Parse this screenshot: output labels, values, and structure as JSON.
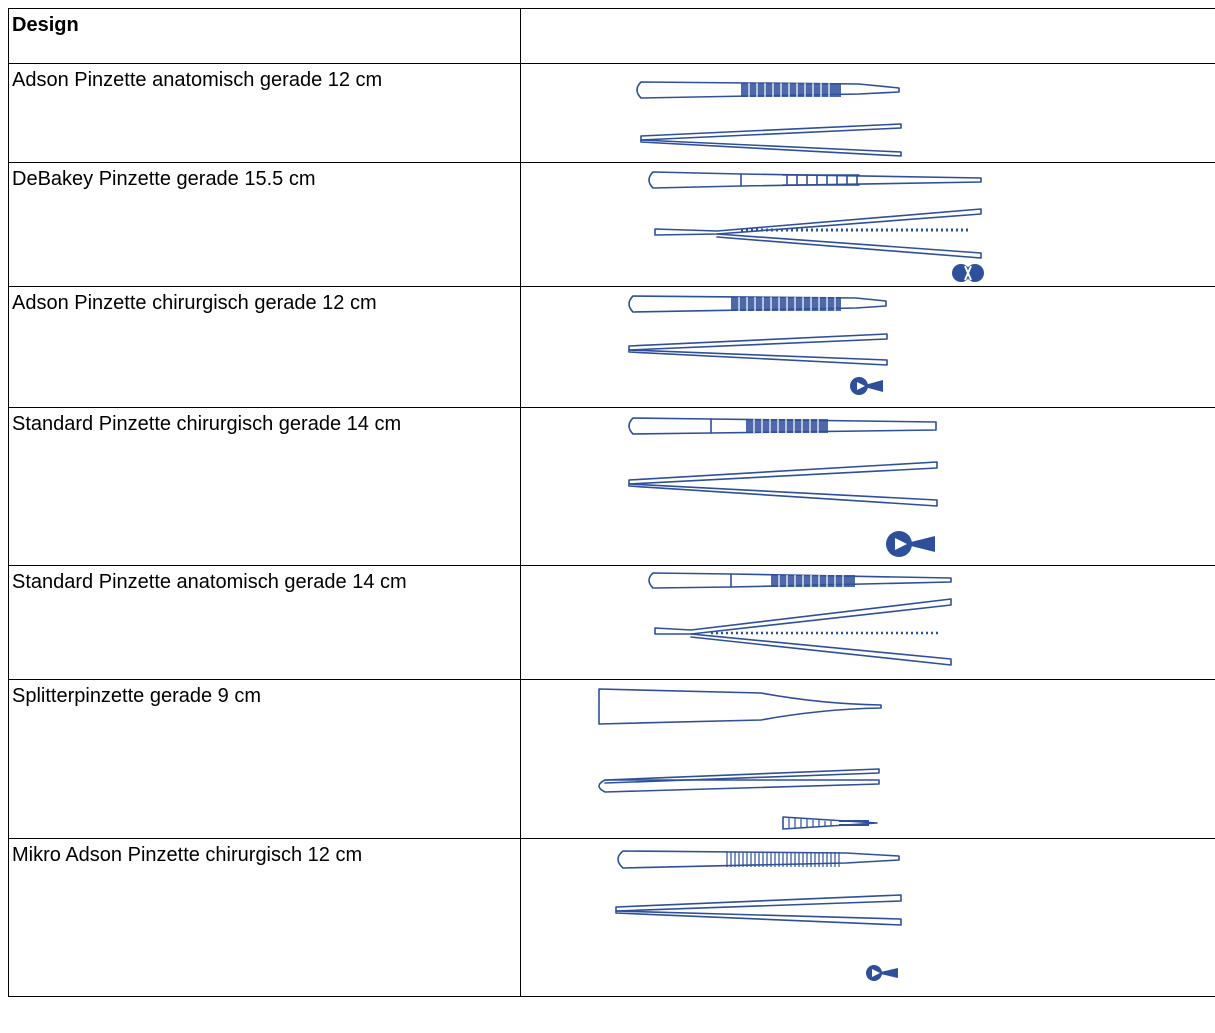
{
  "header": {
    "design_label": "Design"
  },
  "rows": [
    {
      "name": "Adson Pinzette anatomisch gerade 12 cm",
      "tip_icon": "none"
    },
    {
      "name": "DeBakey Pinzette gerade 15.5 cm",
      "tip_icon": "debakey-tip-icon"
    },
    {
      "name": "Adson Pinzette chirurgisch gerade 12 cm",
      "tip_icon": "surgical-tip-icon"
    },
    {
      "name": "Standard Pinzette chirurgisch gerade 14 cm",
      "tip_icon": "surgical-tip-icon"
    },
    {
      "name": "Standard Pinzette anatomisch gerade 14 cm",
      "tip_icon": "none"
    },
    {
      "name": "Splitterpinzette gerade 9 cm",
      "tip_icon": "serrated-tip-icon"
    },
    {
      "name": "Mikro Adson Pinzette chirurgisch 12 cm",
      "tip_icon": "surgical-tip-icon"
    }
  ],
  "colors": {
    "instrument_blue": "#2e4f9a",
    "border": "#000000"
  }
}
